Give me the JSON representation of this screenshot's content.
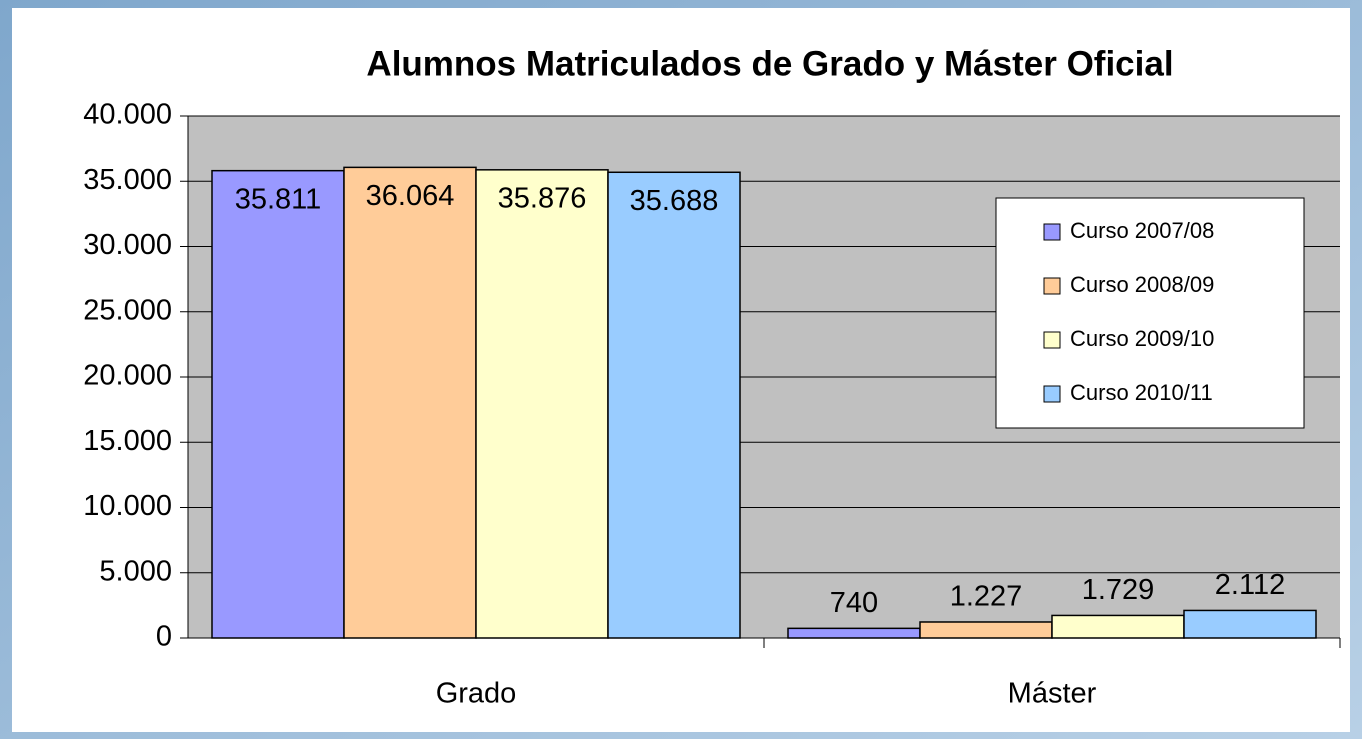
{
  "chart_data": {
    "type": "bar",
    "title": "Alumnos Matriculados de Grado y Máster Oficial",
    "categories": [
      "Grado",
      "Máster"
    ],
    "series": [
      {
        "name": "Curso 2007/08",
        "color": "#9999ff",
        "values": [
          35811,
          740
        ],
        "value_labels": [
          "35.811",
          "740"
        ]
      },
      {
        "name": "Curso 2008/09",
        "color": "#ffcc99",
        "values": [
          36064,
          1227
        ],
        "value_labels": [
          "36.064",
          "1.227"
        ]
      },
      {
        "name": "Curso 2009/10",
        "color": "#ffffcc",
        "values": [
          35876,
          1729
        ],
        "value_labels": [
          "35.876",
          "1.729"
        ]
      },
      {
        "name": "Curso 2010/11",
        "color": "#99ccff",
        "values": [
          35688,
          2112
        ],
        "value_labels": [
          "35.688",
          "2.112"
        ]
      }
    ],
    "ylim": [
      0,
      40000
    ],
    "yticks": [
      0,
      {
        "value": 5000,
        "label": "5.000"
      },
      {
        "value": 10000,
        "label": "10.000"
      },
      {
        "value": 15000,
        "label": "15.000"
      },
      {
        "value": 20000,
        "label": "20.000"
      },
      {
        "value": 25000,
        "label": "25.000"
      },
      {
        "value": 30000,
        "label": "30.000"
      },
      {
        "value": 35000,
        "label": "35.000"
      },
      {
        "value": 40000,
        "label": "40.000"
      }
    ],
    "grid": true,
    "legend": "right"
  }
}
